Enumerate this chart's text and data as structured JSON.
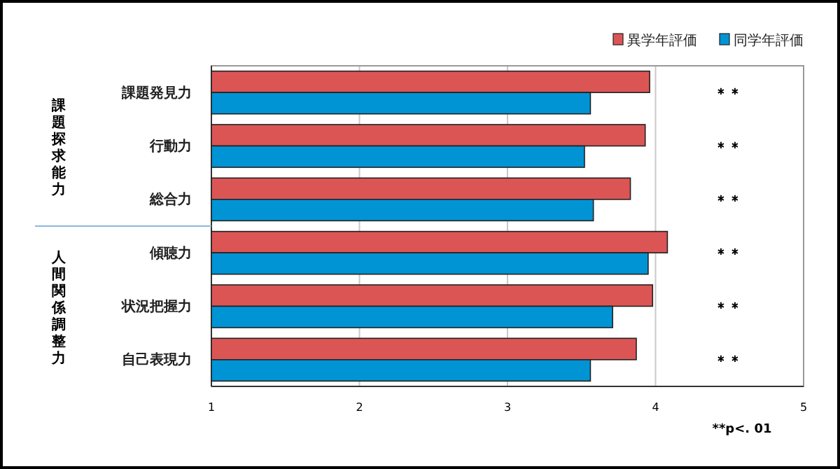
{
  "chart_data": {
    "type": "bar",
    "orientation": "horizontal",
    "categories": [
      "課題発見力",
      "行動力",
      "総合力",
      "傾聴力",
      "状況把握力",
      "自己表現力"
    ],
    "series": [
      {
        "name": "異学年評価",
        "color": "#dc5555",
        "values": [
          3.96,
          3.93,
          3.83,
          4.08,
          3.98,
          3.87
        ]
      },
      {
        "name": "同学年評価",
        "color": "#0094d4",
        "values": [
          3.56,
          3.52,
          3.58,
          3.95,
          3.71,
          3.56
        ]
      }
    ],
    "xlim": [
      1,
      5
    ],
    "xticks": [
      1,
      2,
      3,
      4,
      5
    ],
    "grid": "x",
    "legend": "top right",
    "annotations": [
      "＊＊",
      "＊＊",
      "＊＊",
      "＊＊",
      "＊＊",
      "＊＊",
      "課題探求能力",
      "人間関係調整力",
      "**p<. 01"
    ]
  }
}
